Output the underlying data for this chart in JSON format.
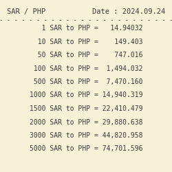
{
  "title_left": "SAR / PHP",
  "title_right": "Date : 2024.09.24",
  "background_color": "#f5f2d8",
  "rows": [
    {
      "sar": "   1",
      "php": "  14.94032"
    },
    {
      "sar": "  10",
      "php": "   149.403"
    },
    {
      "sar": "  50",
      "php": "   747.016"
    },
    {
      "sar": " 100",
      "php": " 1,494.032"
    },
    {
      "sar": " 500",
      "php": " 7,470.160"
    },
    {
      "sar": "1000",
      "php": "14,940.319"
    },
    {
      "sar": "1500",
      "php": "22,410.479"
    },
    {
      "sar": "2000",
      "php": "29,880.638"
    },
    {
      "sar": "3000",
      "php": "44,820.958"
    },
    {
      "sar": "5000",
      "php": "74,701.596"
    }
  ],
  "font_size": 7.0,
  "title_font_size": 7.5,
  "text_color": "#3a3a3a",
  "dash_line": "- - - - - - - - - - - - - - - - - - - - - - - -"
}
